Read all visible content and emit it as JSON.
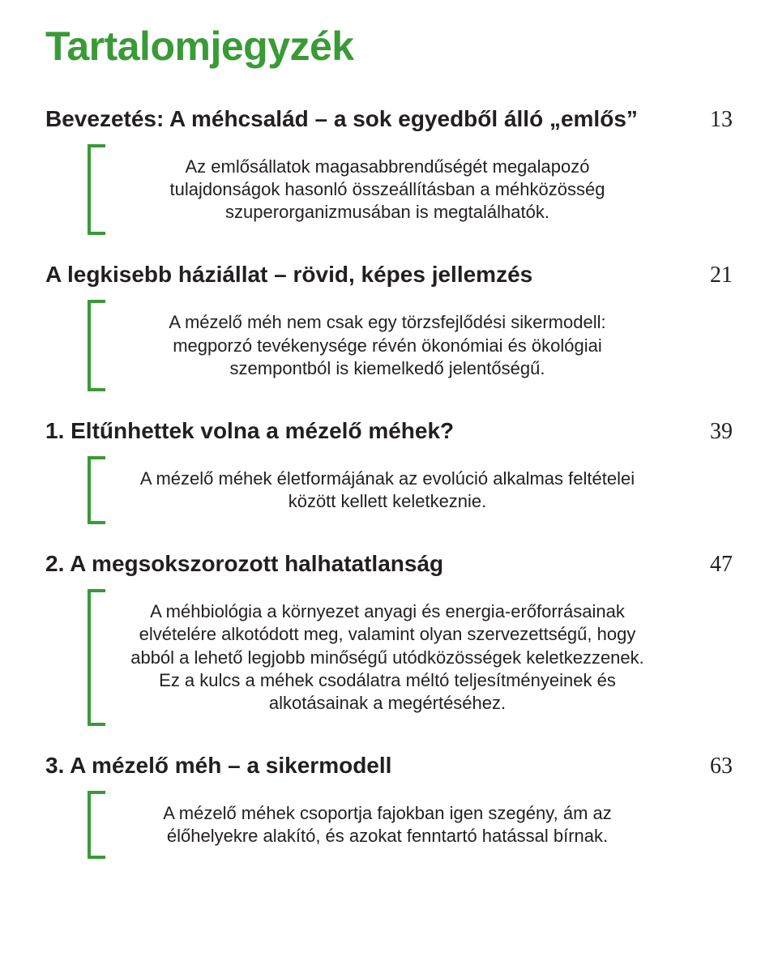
{
  "accent_color": "#3a9a37",
  "text_color": "#231f20",
  "background_color": "#ffffff",
  "title": "Tartalomjegyzék",
  "title_fontsize": 50,
  "heading_fontsize": 28,
  "pagenum_fontsize": 28,
  "desc_fontsize": 22,
  "bracket_line_width": 4,
  "bracket_tab_width": 22,
  "entries": [
    {
      "heading": "Bevezetés: A méhcsalád – a sok egyedből álló „emlős”",
      "page": "13",
      "description": "Az emlősállatok magasabbrendűségét megalapozó tulajdonságok hasonló összeállításban a méhközösség szuperorganizmusában is megtalálhatók."
    },
    {
      "heading": "A legkisebb háziállat – rövid, képes jellemzés",
      "page": "21",
      "description": "A mézelő méh nem csak egy törzsfejlődési sikermodell: megporzó tevékenysége révén ökonómiai és ökológiai szempontból is kiemelkedő jelentőségű."
    },
    {
      "heading": "1.  Eltűnhettek volna a mézelő méhek?",
      "page": "39",
      "description": "A mézelő méhek életformájának az evolúció alkalmas feltételei között kellett keletkeznie."
    },
    {
      "heading": "2.  A megsokszorozott halhatatlanság",
      "page": "47",
      "description": "A méhbiológia a környezet anyagi és energia-erőforrásainak elvételére alkotódott meg, valamint olyan szervezettségű, hogy abból a lehető legjobb minőségű utódközösségek keletkezzenek. Ez a kulcs a méhek csodálatra méltó teljesítményeinek és alkotásainak a megértéséhez."
    },
    {
      "heading": "3.  A mézelő méh – a sikermodell",
      "page": "63",
      "description": "A mézelő méhek csoportja fajokban igen szegény, ám az élőhelyekre alakító, és azokat fenntartó hatással bírnak."
    }
  ]
}
